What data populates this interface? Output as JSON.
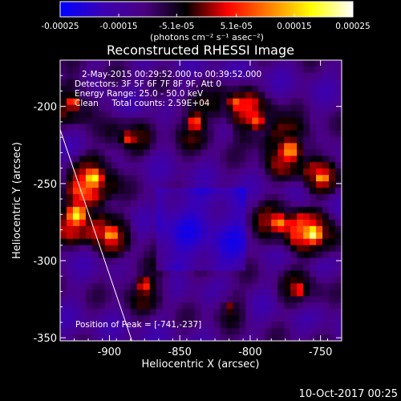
{
  "chart_data": {
    "type": "heatmap",
    "title": "Reconstructed RHESSI Image",
    "xlabel": "Heliocentric X (arcsec)",
    "ylabel": "Heliocentric Y (arcsec)",
    "xlim": [
      -935,
      -735
    ],
    "ylim": [
      -352,
      -170
    ],
    "x_ticks": [
      -900,
      -850,
      -800,
      -750
    ],
    "x_tick_labels": [
      "-900",
      "-850",
      "-800",
      "-750"
    ],
    "y_ticks": [
      -350,
      -300,
      -250,
      -200
    ],
    "y_tick_labels": [
      "-350",
      "-300",
      "-250",
      "-200"
    ],
    "colorbar": {
      "range": [
        -0.00025,
        0.00025
      ],
      "ticks": [
        -0.00025,
        -0.00015,
        -5.1e-05,
        5.1e-05,
        0.00015,
        0.00025
      ],
      "tick_labels": [
        "-0.00025",
        "-0.00015",
        "-5.1e-05",
        "5.1e-05",
        "0.00015",
        "0.00025"
      ],
      "unit_label": "(photons cm⁻² s⁻¹ asec⁻²)",
      "stops": [
        "#0000ff",
        "#3a00b4",
        "#4b0082",
        "#000000",
        "#ff0000",
        "#ff8000",
        "#ffff00",
        "#ffffff"
      ]
    },
    "annotations": [
      "2-May-2015 00:29:52.000 to 00:39:52.000",
      "Detectors: 3F 5F 6F 7F 8F 9F, Att 0",
      "Energy Range: 25.0 - 50.0 keV",
      "Clean     Total counts: 2.59E+04"
    ],
    "peak_label": "Position of Peak = [-741,-237]",
    "limb_line": {
      "x": [
        -935,
        -884
      ],
      "y": [
        -215,
        -352
      ]
    },
    "grid": false
  },
  "footer": {
    "timestamp": "10-Oct-2017 00:25"
  }
}
